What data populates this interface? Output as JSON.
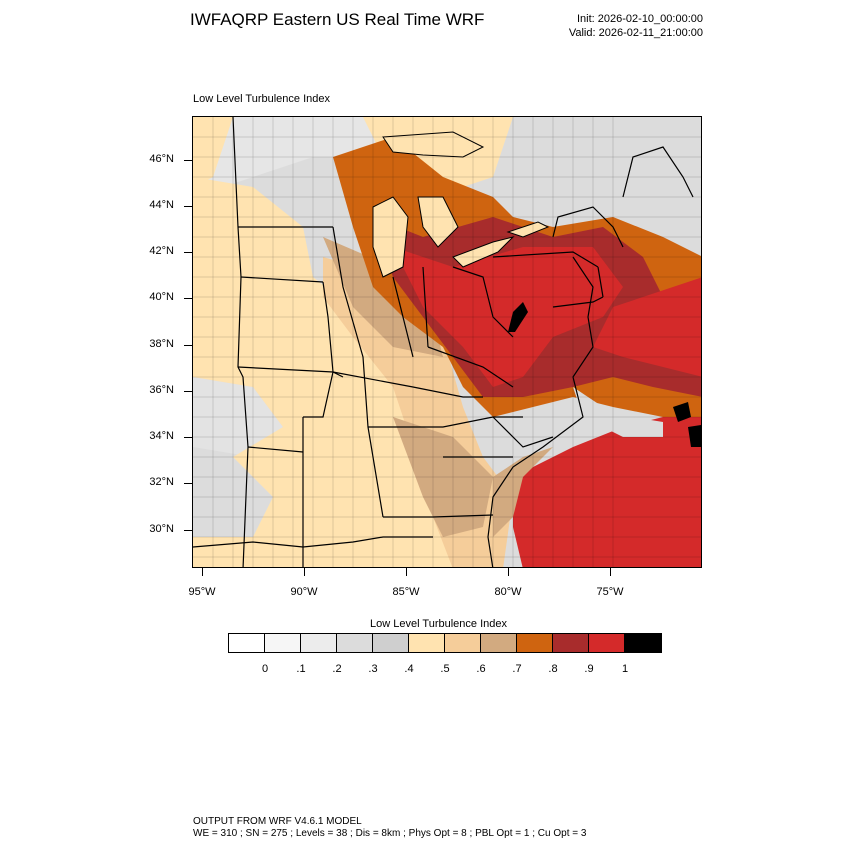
{
  "header": {
    "title": "IWFAQRP Eastern US Real Time WRF",
    "init": "Init: 2026-02-10_00:00:00",
    "valid": "Valid: 2026-02-11_21:00:00"
  },
  "map": {
    "field_label": "Low Level Turbulence Index",
    "lat_labels": [
      "46°N",
      "44°N",
      "42°N",
      "40°N",
      "38°N",
      "36°N",
      "34°N",
      "32°N",
      "30°N"
    ],
    "lon_labels": [
      "95°W",
      "90°W",
      "85°W",
      "80°W",
      "75°W"
    ]
  },
  "legend": {
    "title": "Low Level Turbulence Index",
    "colors": [
      "#ffffff",
      "#f6f6f6",
      "#ececec",
      "#dcdcdc",
      "#cfcfcf",
      "#ffe3b0",
      "#f5cd9a",
      "#d2aa80",
      "#cf6410",
      "#a82c2c",
      "#d42a2a",
      "#000000"
    ],
    "labels": [
      "0",
      ".1",
      ".2",
      ".3",
      ".4",
      ".5",
      ".6",
      ".7",
      ".8",
      ".9",
      "1"
    ]
  },
  "footer": {
    "line1": "OUTPUT FROM WRF V4.6.1 MODEL",
    "line2": "WE = 310 ; SN = 275 ; Levels = 38 ; Dis = 8km ; Phys Opt = 8 ; PBL Opt = 1 ; Cu Opt = 3"
  }
}
